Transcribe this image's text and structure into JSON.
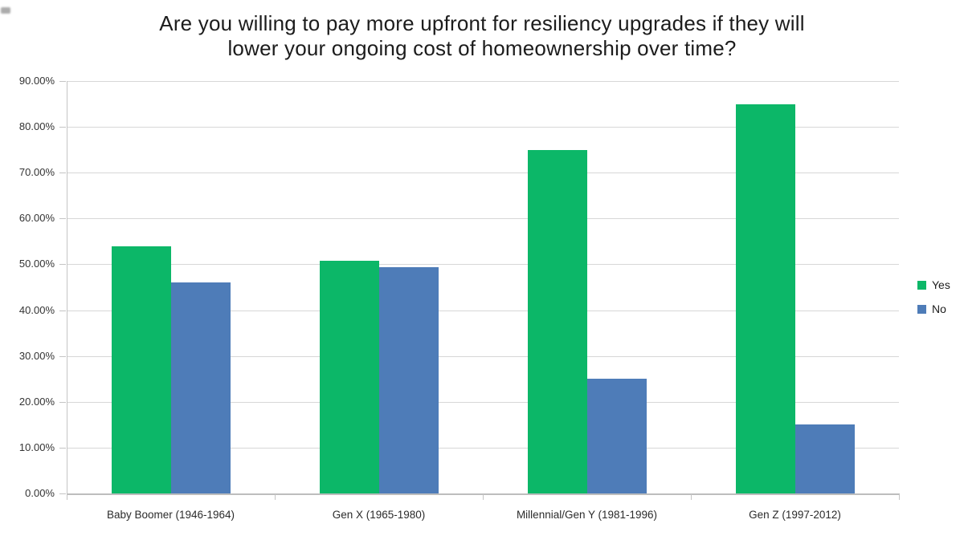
{
  "chart_data": {
    "type": "bar",
    "title": "Are you willing to pay more upfront for resiliency upgrades if they will lower your ongoing cost of homeownership over time?",
    "title_lines": [
      "Are you willing to pay more upfront for resiliency upgrades if they will",
      "lower your ongoing cost of homeownership over time?"
    ],
    "categories": [
      "Baby Boomer (1946-1964)",
      "Gen X (1965-1980)",
      "Millennial/Gen Y (1981-1996)",
      "Gen Z (1997-2012)"
    ],
    "series": [
      {
        "name": "Yes",
        "color": "#0cb768",
        "values": [
          54.0,
          50.7,
          75.0,
          85.0
        ]
      },
      {
        "name": "No",
        "color": "#4e7cb8",
        "values": [
          46.0,
          49.3,
          25.0,
          15.0
        ]
      }
    ],
    "xlabel": "",
    "ylabel": "",
    "ylim": [
      0,
      90
    ],
    "ytick_step": 10,
    "ytick_labels": [
      "0.00%",
      "10.00%",
      "20.00%",
      "30.00%",
      "40.00%",
      "50.00%",
      "60.00%",
      "70.00%",
      "80.00%",
      "90.00%"
    ],
    "grid": "horizontal",
    "legend_position": "right"
  }
}
